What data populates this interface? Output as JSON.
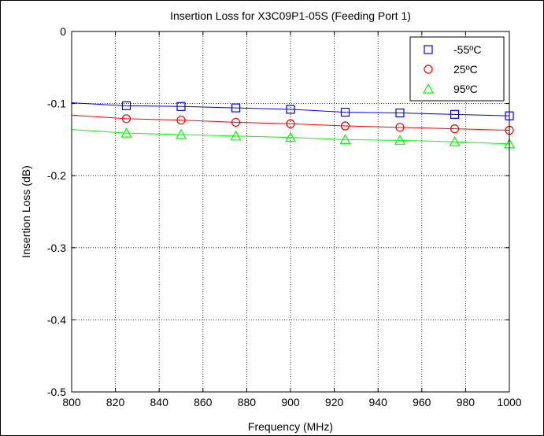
{
  "chart_data": {
    "type": "line",
    "title": "Insertion Loss for X3C09P1-05S (Feeding Port 1)",
    "xlabel": "Frequency (MHz)",
    "ylabel": "Insertion Loss (dB)",
    "xlim": [
      800,
      1000
    ],
    "ylim": [
      -0.5,
      0
    ],
    "xticks": [
      800,
      820,
      840,
      860,
      880,
      900,
      920,
      940,
      960,
      980,
      1000
    ],
    "yticks": [
      0,
      -0.1,
      -0.2,
      -0.3,
      -0.4,
      -0.5
    ],
    "ytick_labels": [
      "0",
      "-0.1",
      "-0.2",
      "-0.3",
      "-0.4",
      "-0.5"
    ],
    "grid": true,
    "legend_position": "top-right",
    "series": [
      {
        "name": "-55ºC",
        "color": "#0000ff",
        "marker": "square",
        "line_x": [
          800,
          825,
          850,
          875,
          900,
          925,
          950,
          975,
          1000
        ],
        "line_y": [
          -0.099,
          -0.103,
          -0.104,
          -0.106,
          -0.108,
          -0.112,
          -0.113,
          -0.115,
          -0.117
        ],
        "marker_x": [
          825,
          850,
          875,
          900,
          925,
          950,
          975,
          1000
        ],
        "marker_y": [
          -0.103,
          -0.104,
          -0.106,
          -0.108,
          -0.112,
          -0.113,
          -0.115,
          -0.117
        ]
      },
      {
        "name": "25ºC",
        "color": "#ff0000",
        "marker": "circle",
        "line_x": [
          800,
          825,
          850,
          875,
          900,
          925,
          950,
          975,
          1000
        ],
        "line_y": [
          -0.116,
          -0.121,
          -0.123,
          -0.126,
          -0.128,
          -0.131,
          -0.133,
          -0.135,
          -0.137
        ],
        "marker_x": [
          825,
          850,
          875,
          900,
          925,
          950,
          975,
          1000
        ],
        "marker_y": [
          -0.121,
          -0.123,
          -0.126,
          -0.128,
          -0.131,
          -0.133,
          -0.135,
          -0.137
        ]
      },
      {
        "name": "95ºC",
        "color": "#00ff00",
        "marker": "triangle",
        "line_x": [
          800,
          825,
          850,
          875,
          900,
          925,
          950,
          975,
          1000
        ],
        "line_y": [
          -0.136,
          -0.141,
          -0.143,
          -0.145,
          -0.147,
          -0.15,
          -0.151,
          -0.153,
          -0.156
        ],
        "marker_x": [
          825,
          850,
          875,
          900,
          925,
          950,
          975,
          1000
        ],
        "marker_y": [
          -0.141,
          -0.143,
          -0.145,
          -0.147,
          -0.15,
          -0.151,
          -0.153,
          -0.156
        ]
      }
    ]
  }
}
